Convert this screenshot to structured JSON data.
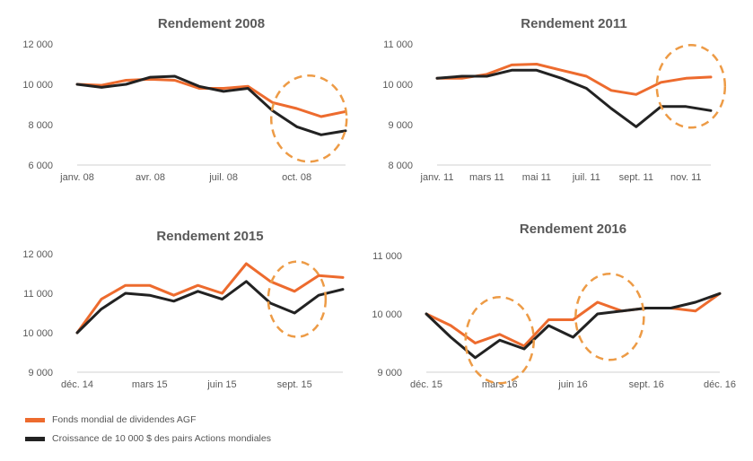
{
  "colors": {
    "fund": "#ED6B2E",
    "peers": "#222222",
    "highlight": "#ED9B46",
    "axis_text": "#595959",
    "title_text": "#595959"
  },
  "legend": [
    {
      "label": "Fonds mondial de dividendes AGF",
      "color": "#ED6B2E"
    },
    {
      "label": "Croissance de 10 000 $ des pairs Actions mondiales",
      "color": "#222222"
    }
  ],
  "chart_data": [
    {
      "type": "line",
      "title": "Rendement 2008",
      "ylim": [
        6000,
        12000
      ],
      "yticks": [
        "6 000",
        "8 000",
        "10 000",
        "12 000"
      ],
      "ytick_values": [
        6000,
        8000,
        10000,
        12000
      ],
      "x_tick_labels": [
        "janv. 08",
        "avr. 08",
        "juil. 08",
        "oct. 08"
      ],
      "x_tick_indices": [
        0,
        3,
        6,
        9
      ],
      "series": [
        {
          "values": [
            10000,
            9950,
            10200,
            10250,
            10200,
            9800,
            9800,
            9900,
            9100,
            8800,
            8400,
            8650
          ]
        },
        {
          "values": [
            10000,
            9850,
            10000,
            10350,
            10400,
            9900,
            9650,
            9800,
            8700,
            7900,
            7500,
            7700
          ]
        }
      ],
      "highlight_circles": [
        {
          "x": 9.5,
          "y": 8300
        }
      ]
    },
    {
      "type": "line",
      "title": "Rendement 2011",
      "ylim": [
        8000,
        11000
      ],
      "yticks": [
        "8 000",
        "9 000",
        "10 000",
        "11 000"
      ],
      "ytick_values": [
        8000,
        9000,
        10000,
        11000
      ],
      "x_tick_labels": [
        "janv. 11",
        "mars 11",
        "mai 11",
        "juil. 11",
        "sept. 11",
        "nov. 11"
      ],
      "x_tick_indices": [
        0,
        2,
        4,
        6,
        8,
        10
      ],
      "series": [
        {
          "values": [
            10150,
            10150,
            10250,
            10480,
            10500,
            10350,
            10200,
            9850,
            9750,
            10050,
            10150,
            10180
          ]
        },
        {
          "values": [
            10150,
            10200,
            10200,
            10350,
            10350,
            10150,
            9900,
            9400,
            8950,
            9450,
            9450,
            9350
          ]
        }
      ],
      "highlight_circles": [
        {
          "x": 10.2,
          "y": 9950
        }
      ]
    },
    {
      "type": "line",
      "title": "Rendement 2015",
      "ylim": [
        9000,
        12000
      ],
      "yticks": [
        "9 000",
        "10 000",
        "11 000",
        "12 000"
      ],
      "ytick_values": [
        9000,
        10000,
        11000,
        12000
      ],
      "x_tick_labels": [
        "déc. 14",
        "mars 15",
        "juin 15",
        "sept. 15"
      ],
      "x_tick_indices": [
        0,
        3,
        6,
        9
      ],
      "series": [
        {
          "values": [
            10000,
            10850,
            11200,
            11200,
            10950,
            11200,
            11000,
            11750,
            11300,
            11050,
            11450,
            11400
          ]
        },
        {
          "values": [
            10000,
            10600,
            11000,
            10950,
            10800,
            11050,
            10850,
            11300,
            10750,
            10500,
            10950,
            11100
          ]
        }
      ],
      "highlight_circles": [
        {
          "x": 9.1,
          "y": 10850
        }
      ]
    },
    {
      "type": "line",
      "title": "Rendement 2016",
      "ylim": [
        9000,
        11000
      ],
      "yticks": [
        "9 000",
        "10 000",
        "11 000"
      ],
      "ytick_values": [
        9000,
        10000,
        11000
      ],
      "x_tick_labels": [
        "déc. 15",
        "mars 16",
        "juin 16",
        "sept. 16",
        "déc. 16"
      ],
      "x_tick_indices": [
        0,
        3,
        6,
        9,
        12
      ],
      "series": [
        {
          "values": [
            10000,
            9800,
            9500,
            9650,
            9450,
            9900,
            9900,
            10200,
            10050,
            10100,
            10100,
            10050,
            10350
          ]
        },
        {
          "values": [
            10000,
            9600,
            9250,
            9550,
            9400,
            9800,
            9600,
            10000,
            10050,
            10100,
            10100,
            10200,
            10350
          ]
        }
      ],
      "highlight_circles": [
        {
          "x": 3.0,
          "y": 9550
        },
        {
          "x": 7.5,
          "y": 9950
        }
      ]
    }
  ]
}
